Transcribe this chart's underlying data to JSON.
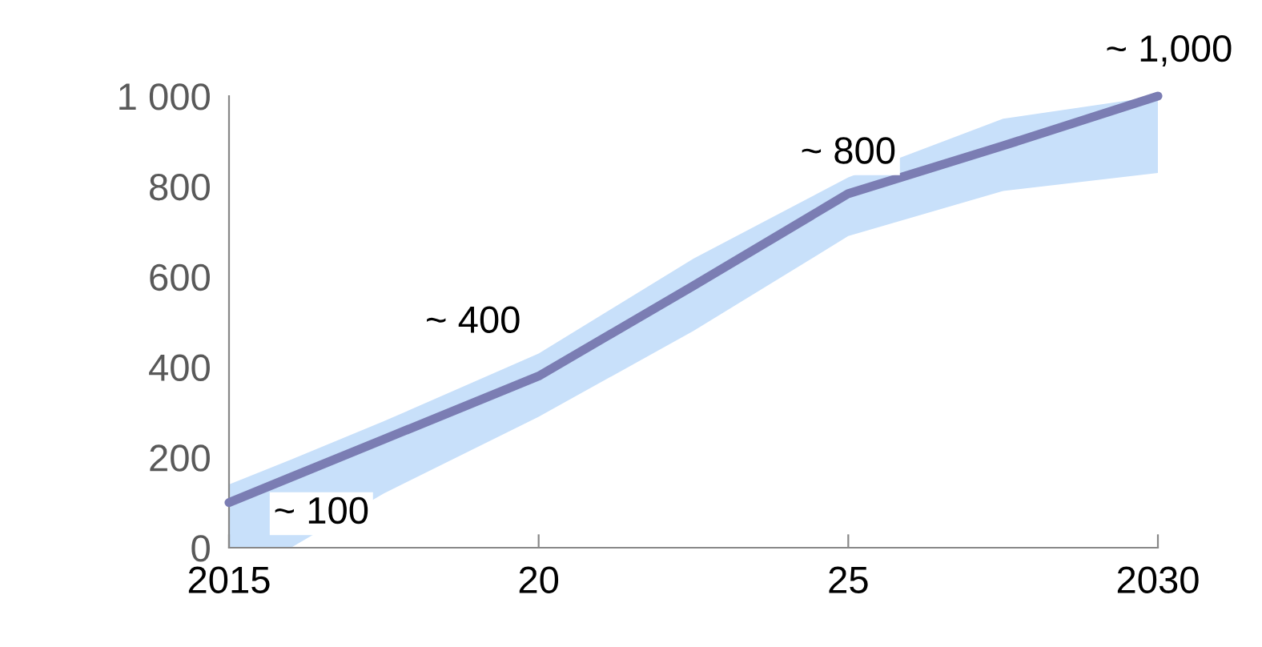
{
  "chart_data": {
    "type": "line",
    "x": [
      2015,
      2016,
      2017.5,
      2020,
      2022.5,
      2025,
      2027.5,
      2030
    ],
    "series": [
      {
        "color": "#7b7db3",
        "values": [
          100,
          156,
          240,
          380,
          580,
          784,
          890,
          1000
        ],
        "lower": [
          0,
          0,
          120,
          290,
          480,
          690,
          790,
          830
        ],
        "upper": [
          140,
          195,
          280,
          430,
          640,
          820,
          950,
          1000
        ]
      }
    ],
    "annotations": [
      {
        "text": "~ 100",
        "x": 2015,
        "y": 100
      },
      {
        "text": "~ 400",
        "x": 2020,
        "y": 380
      },
      {
        "text": "~ 800",
        "x": 2025,
        "y": 784
      },
      {
        "text": "~ 1,000",
        "x": 2030,
        "y": 1000
      }
    ],
    "xlim": [
      2015,
      2030
    ],
    "ylim": [
      0,
      1000
    ],
    "xticks": [
      2015,
      {
        "value": 2020,
        "label": "20"
      },
      {
        "value": 2025,
        "label": "25"
      },
      2030
    ],
    "yticks": [
      0,
      200,
      400,
      600,
      800,
      {
        "value": 1000,
        "label": "1 000"
      }
    ],
    "grid": false,
    "legend": false,
    "marker": "none",
    "line_style": "solid"
  }
}
